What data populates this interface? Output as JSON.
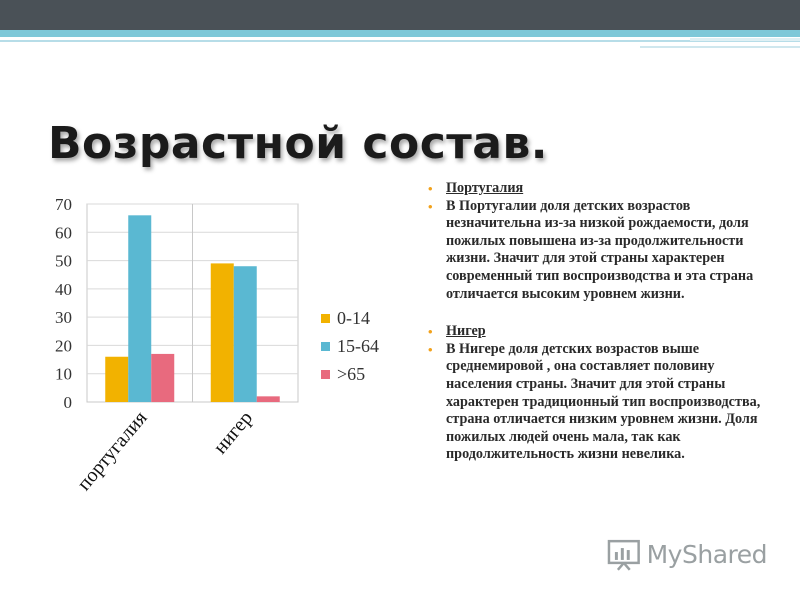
{
  "slide": {
    "title": "Возрастной состав.",
    "watermark": "MyShared"
  },
  "text_panel": {
    "items": [
      {
        "text": "Португалия",
        "heading": true
      },
      {
        "text": "В Португалии доля детских возрастов незначительна из-за низкой рождаемости,  доля пожилых повышена из-за продолжительности жизни. Значит для этой страны характерен современный тип воспроизводства и эта страна отличается высоким уровнем жизни.",
        "heading": false
      },
      {
        "text": "Нигер",
        "heading": true
      },
      {
        "text": "В Нигере доля детских возрастов выше среднемировой , она составляет половину населения страны. Значит для этой страны характерен традиционный тип воспроизводства, страна отличается низким уровнем жизни. Доля пожилых людей очень мала, так как продолжительность жизни невелика.",
        "heading": false
      }
    ]
  },
  "chart_data": {
    "type": "bar",
    "title": "",
    "xlabel": "",
    "ylabel": "",
    "categories": [
      "португалия",
      "нигер"
    ],
    "series": [
      {
        "name": "0-14",
        "values": [
          16,
          49
        ],
        "color": "#f2b200"
      },
      {
        "name": "15-64",
        "values": [
          66,
          48
        ],
        "color": "#5ab8d2"
      },
      {
        "name": ">65",
        "values": [
          17,
          2
        ],
        "color": "#e86a7e"
      }
    ],
    "ylim": [
      0,
      70
    ],
    "yticks": [
      0,
      10,
      20,
      30,
      40,
      50,
      60,
      70
    ],
    "grid": true,
    "legend_position": "right"
  }
}
